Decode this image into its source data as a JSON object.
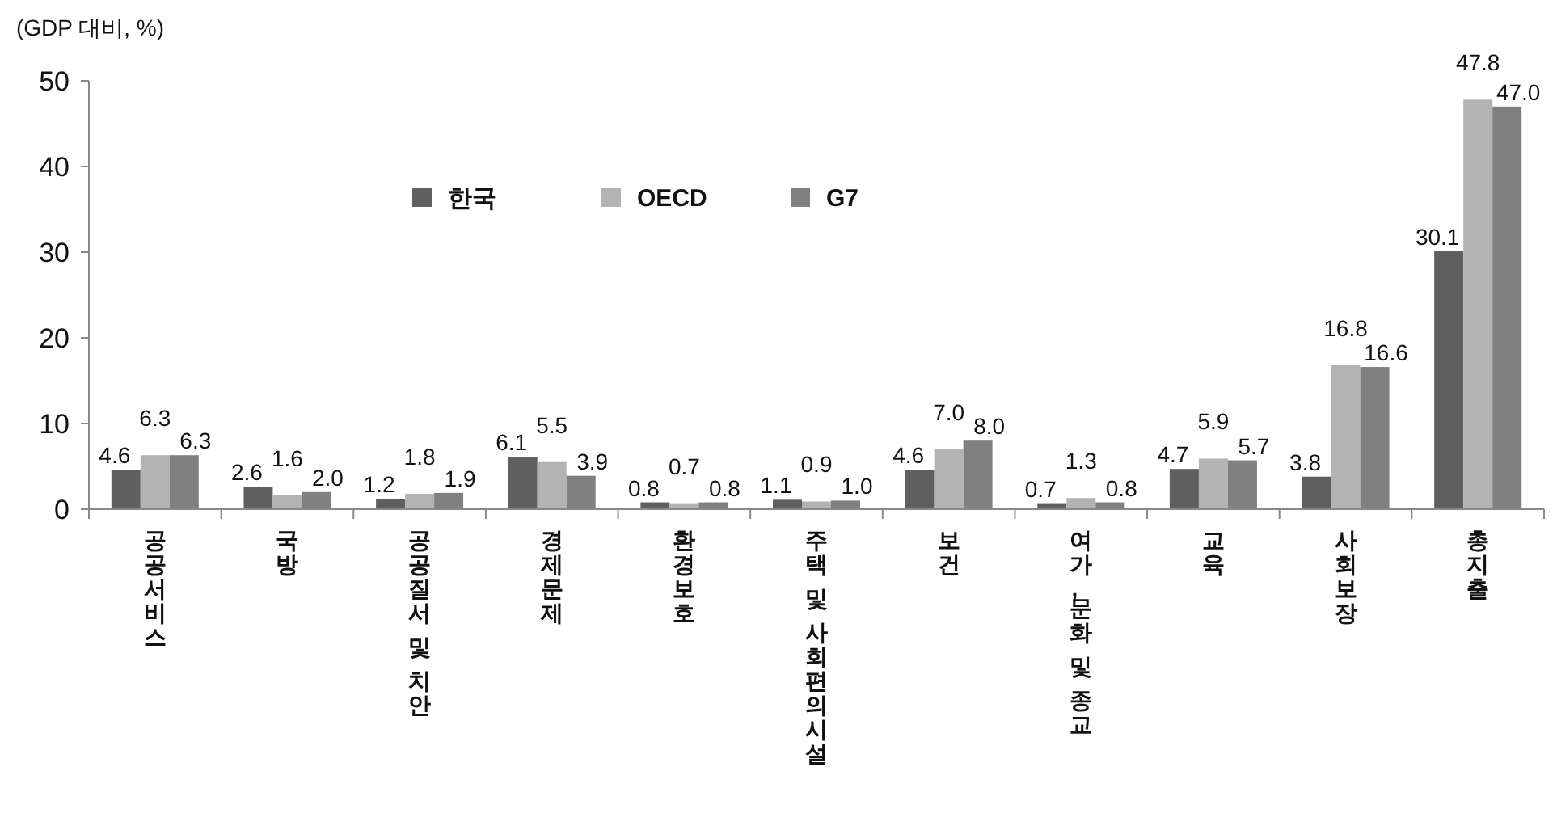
{
  "chart_data": {
    "type": "bar",
    "ylabel": "(GDP 대비, %)",
    "categories": [
      "공공서비스",
      "국방",
      "공공질서 및 치안",
      "경제문제",
      "환경보호",
      "주택 및 사회편의시설",
      "보건",
      "여가, 문화 및 종교",
      "교육",
      "사회보장",
      "총지출"
    ],
    "series": [
      {
        "name": "한국",
        "color": "#5f5f5f",
        "values": [
          4.6,
          2.6,
          1.2,
          6.1,
          0.8,
          1.1,
          4.6,
          0.7,
          4.7,
          3.8,
          30.1
        ],
        "value_labels": [
          "4.6",
          "2.6",
          "1.2",
          "6.1",
          "0.8",
          "1.1",
          "4.6",
          "0.7",
          "4.7",
          "3.8",
          "30.1"
        ]
      },
      {
        "name": "OECD",
        "color": "#b3b3b3",
        "values": [
          6.3,
          1.6,
          1.8,
          5.5,
          0.7,
          0.9,
          7.0,
          1.3,
          5.9,
          16.8,
          47.8
        ],
        "value_labels": [
          "6.3",
          "1.6",
          "1.8",
          "5.5",
          "0.7",
          "0.9",
          "7.0",
          "1.3",
          "5.9",
          "16.8",
          "47.8"
        ]
      },
      {
        "name": "G7",
        "color": "#808080",
        "values": [
          6.3,
          2.0,
          1.9,
          3.9,
          0.8,
          1.0,
          8.0,
          0.8,
          5.7,
          16.6,
          47.0
        ],
        "value_labels": [
          "6.3",
          "2.0",
          "1.9",
          "3.9",
          "0.8",
          "1.0",
          "8.0",
          "0.8",
          "5.7",
          "16.6",
          "47.0"
        ]
      }
    ],
    "ylim": [
      0,
      50
    ],
    "yticks": [
      0,
      10,
      20,
      30,
      40,
      50
    ],
    "grid": false,
    "legend": "top"
  }
}
